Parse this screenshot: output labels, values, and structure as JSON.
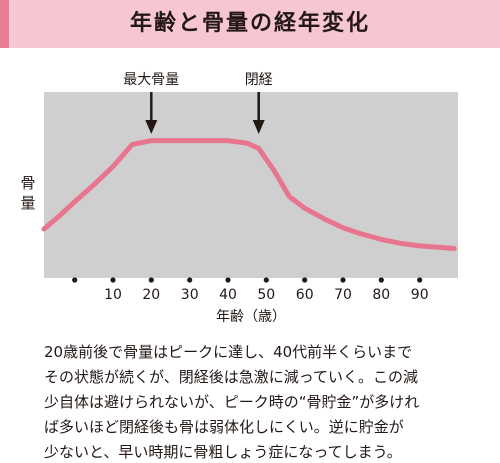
{
  "title": "年齢と骨量の経年変化",
  "chart_data": {
    "type": "line",
    "xlabel": "年齢（歳）",
    "ylabel": "骨量",
    "xlim": [
      -8,
      100
    ],
    "ylim": [
      0,
      100
    ],
    "xticks": [
      0,
      10,
      20,
      30,
      40,
      50,
      60,
      70,
      80,
      90
    ],
    "xtick_labels": [
      "",
      "10",
      "20",
      "30",
      "40",
      "50",
      "60",
      "70",
      "80",
      "90"
    ],
    "grid": false,
    "series": [
      {
        "color": "#e8758e",
        "x": [
          -8,
          -4,
          0,
          5,
          10,
          15,
          20,
          25,
          30,
          35,
          40,
          45,
          48,
          52,
          56,
          60,
          65,
          70,
          75,
          80,
          85,
          90,
          95,
          99
        ],
        "y": [
          30,
          40,
          51,
          64,
          78,
          95,
          98,
          98,
          98,
          98,
          98,
          96,
          92,
          75,
          55,
          46,
          38,
          31,
          26,
          22,
          19,
          17,
          16,
          15
        ]
      }
    ],
    "annotations": [
      {
        "text": "最大骨量",
        "x": 20
      },
      {
        "text": "閉経",
        "x": 48
      }
    ]
  },
  "caption": {
    "lines": [
      "20歳前後で骨量はピークに達し、40代前半くらいまで",
      "その状態が続くが、閉経後は急激に減っていく。この減",
      "少自体は避けられないが、ピーク時の“骨貯金”が多けれ",
      "ば多いほど閉経後も骨は弱体化しにくい。逆に貯金が",
      "少ないと、早い時期に骨粗しょう症になってしまう。"
    ]
  },
  "colors": {
    "title_bg": "#f6c7d3",
    "title_accent": "#e87c97",
    "plot_bg": "#cfcfcf",
    "curve": "#e8758e"
  }
}
